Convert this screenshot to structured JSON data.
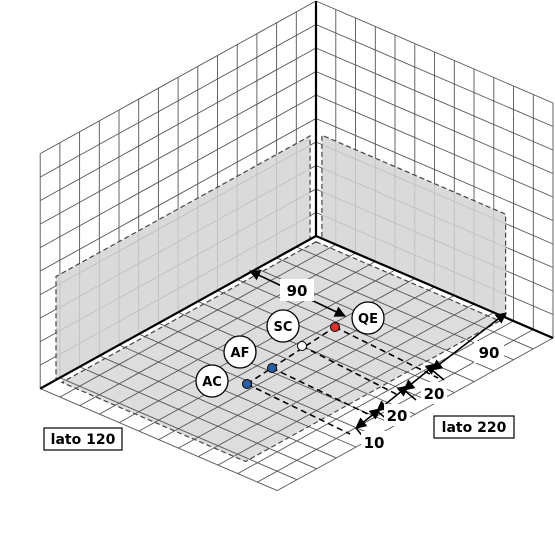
{
  "points": [
    {
      "id": "QE",
      "label": "QE",
      "color": "#d8322a"
    },
    {
      "id": "SC",
      "label": "SC",
      "color": "#ffffff"
    },
    {
      "id": "AF",
      "label": "AF",
      "color": "#2a5fa8"
    },
    {
      "id": "AC",
      "label": "AC",
      "color": "#2a5fa8"
    }
  ],
  "dimensions": {
    "top": "90",
    "right_90": "90",
    "right_20a": "20",
    "right_20b": "20",
    "right_10": "10"
  },
  "sides": {
    "left": "lato 120",
    "right": "lato 220"
  },
  "colors": {
    "grid": "#555555",
    "floor_fill": "#d9d9d9",
    "panel_fill": "#d4d4d4",
    "red_point": "#d8322a",
    "blue_point": "#2a5fa8"
  }
}
